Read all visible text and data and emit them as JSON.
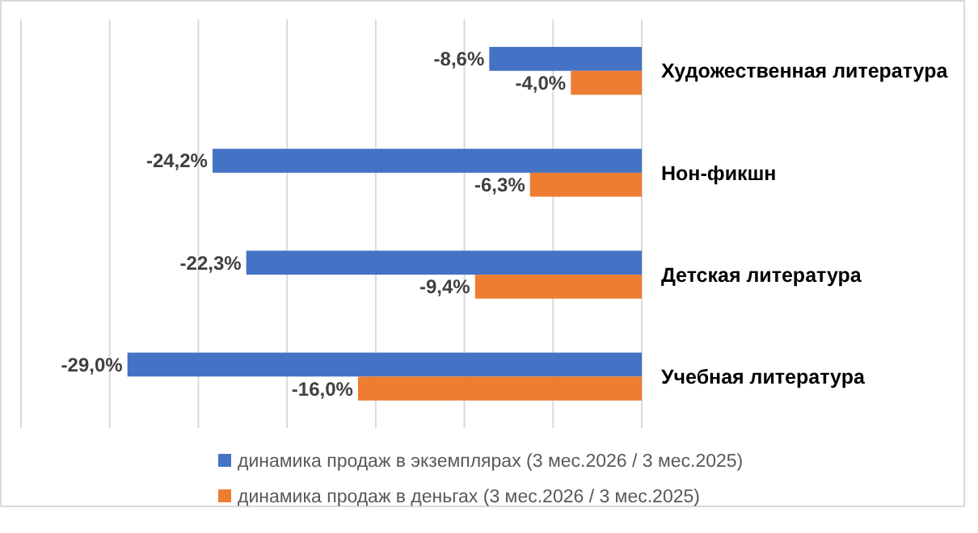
{
  "chart_data": {
    "type": "bar",
    "orientation": "horizontal",
    "categories": [
      "Художественная литература",
      "Нон-фикшн",
      "Детская литература",
      "Учебная литература"
    ],
    "series": [
      {
        "name": "динамика продаж в экземплярах (3 мес.2026 / 3 мес.2025)",
        "color": "#4472c4",
        "values": [
          -8.6,
          -24.2,
          -22.3,
          -29.0
        ],
        "value_labels": [
          "-8,6%",
          "-24,2%",
          "-22,3%",
          "-29,0%"
        ]
      },
      {
        "name": "динамика продаж в деньгах (3 мес.2026 / 3 мес.2025)",
        "color": "#ed7d31",
        "values": [
          -4.0,
          -6.3,
          -9.4,
          -16.0
        ],
        "value_labels": [
          "-4,0%",
          "-6,3%",
          "-9,4%",
          "-16,0%"
        ]
      }
    ],
    "xlim": [
      -35,
      0
    ],
    "xticks": [
      {
        "value": -35,
        "label": null
      },
      {
        "value": -30,
        "label": null
      },
      {
        "value": -25,
        "label": null
      },
      {
        "value": -20,
        "label": null
      },
      {
        "value": -15,
        "label": null
      },
      {
        "value": -10,
        "label": null
      },
      {
        "value": -5,
        "label": null
      },
      {
        "value": 0,
        "label": null
      }
    ],
    "grid": "x",
    "legend": "bottom"
  }
}
